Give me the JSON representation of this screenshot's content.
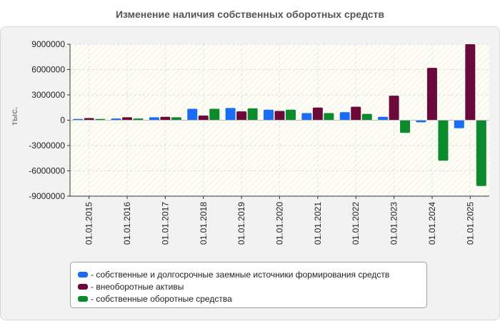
{
  "chart_data": {
    "type": "bar",
    "title": "Изменение наличия собственных оборотных средств",
    "ylabel": "тыс.",
    "xlabel": "",
    "ylim": [
      -9000000,
      9000000
    ],
    "yticks": [
      9000000,
      6000000,
      3000000,
      0,
      -3000000,
      -6000000,
      -9000000
    ],
    "ytick_labels": [
      "9000000",
      "6000000",
      "3000000",
      "0",
      "-3000000",
      "-6000000",
      "-9000000"
    ],
    "categories": [
      "01.01.2015",
      "01.01.2016",
      "01.01.2017",
      "01.01.2018",
      "01.01.2019",
      "01.01.2020",
      "01.01.2021",
      "01.01.2022",
      "01.01.2023",
      "01.01.2024",
      "01.01.2025"
    ],
    "grid": true,
    "legend_position": "bottom",
    "series": [
      {
        "name": "собственные и долгосрочные заемные источники формирования средств",
        "color": "#1a6ef5",
        "values": [
          150000,
          200000,
          350000,
          1350000,
          1450000,
          1250000,
          850000,
          950000,
          400000,
          -250000,
          -950000
        ]
      },
      {
        "name": "внеоборотные активы",
        "color": "#6b0a3a",
        "values": [
          250000,
          350000,
          400000,
          550000,
          1050000,
          1100000,
          1500000,
          1600000,
          2900000,
          6200000,
          9000000
        ]
      },
      {
        "name": "собственные оборотные средства",
        "color": "#0b8a2e",
        "values": [
          150000,
          200000,
          350000,
          1350000,
          1400000,
          1250000,
          850000,
          750000,
          -1500000,
          -4800000,
          -7800000
        ]
      }
    ]
  }
}
